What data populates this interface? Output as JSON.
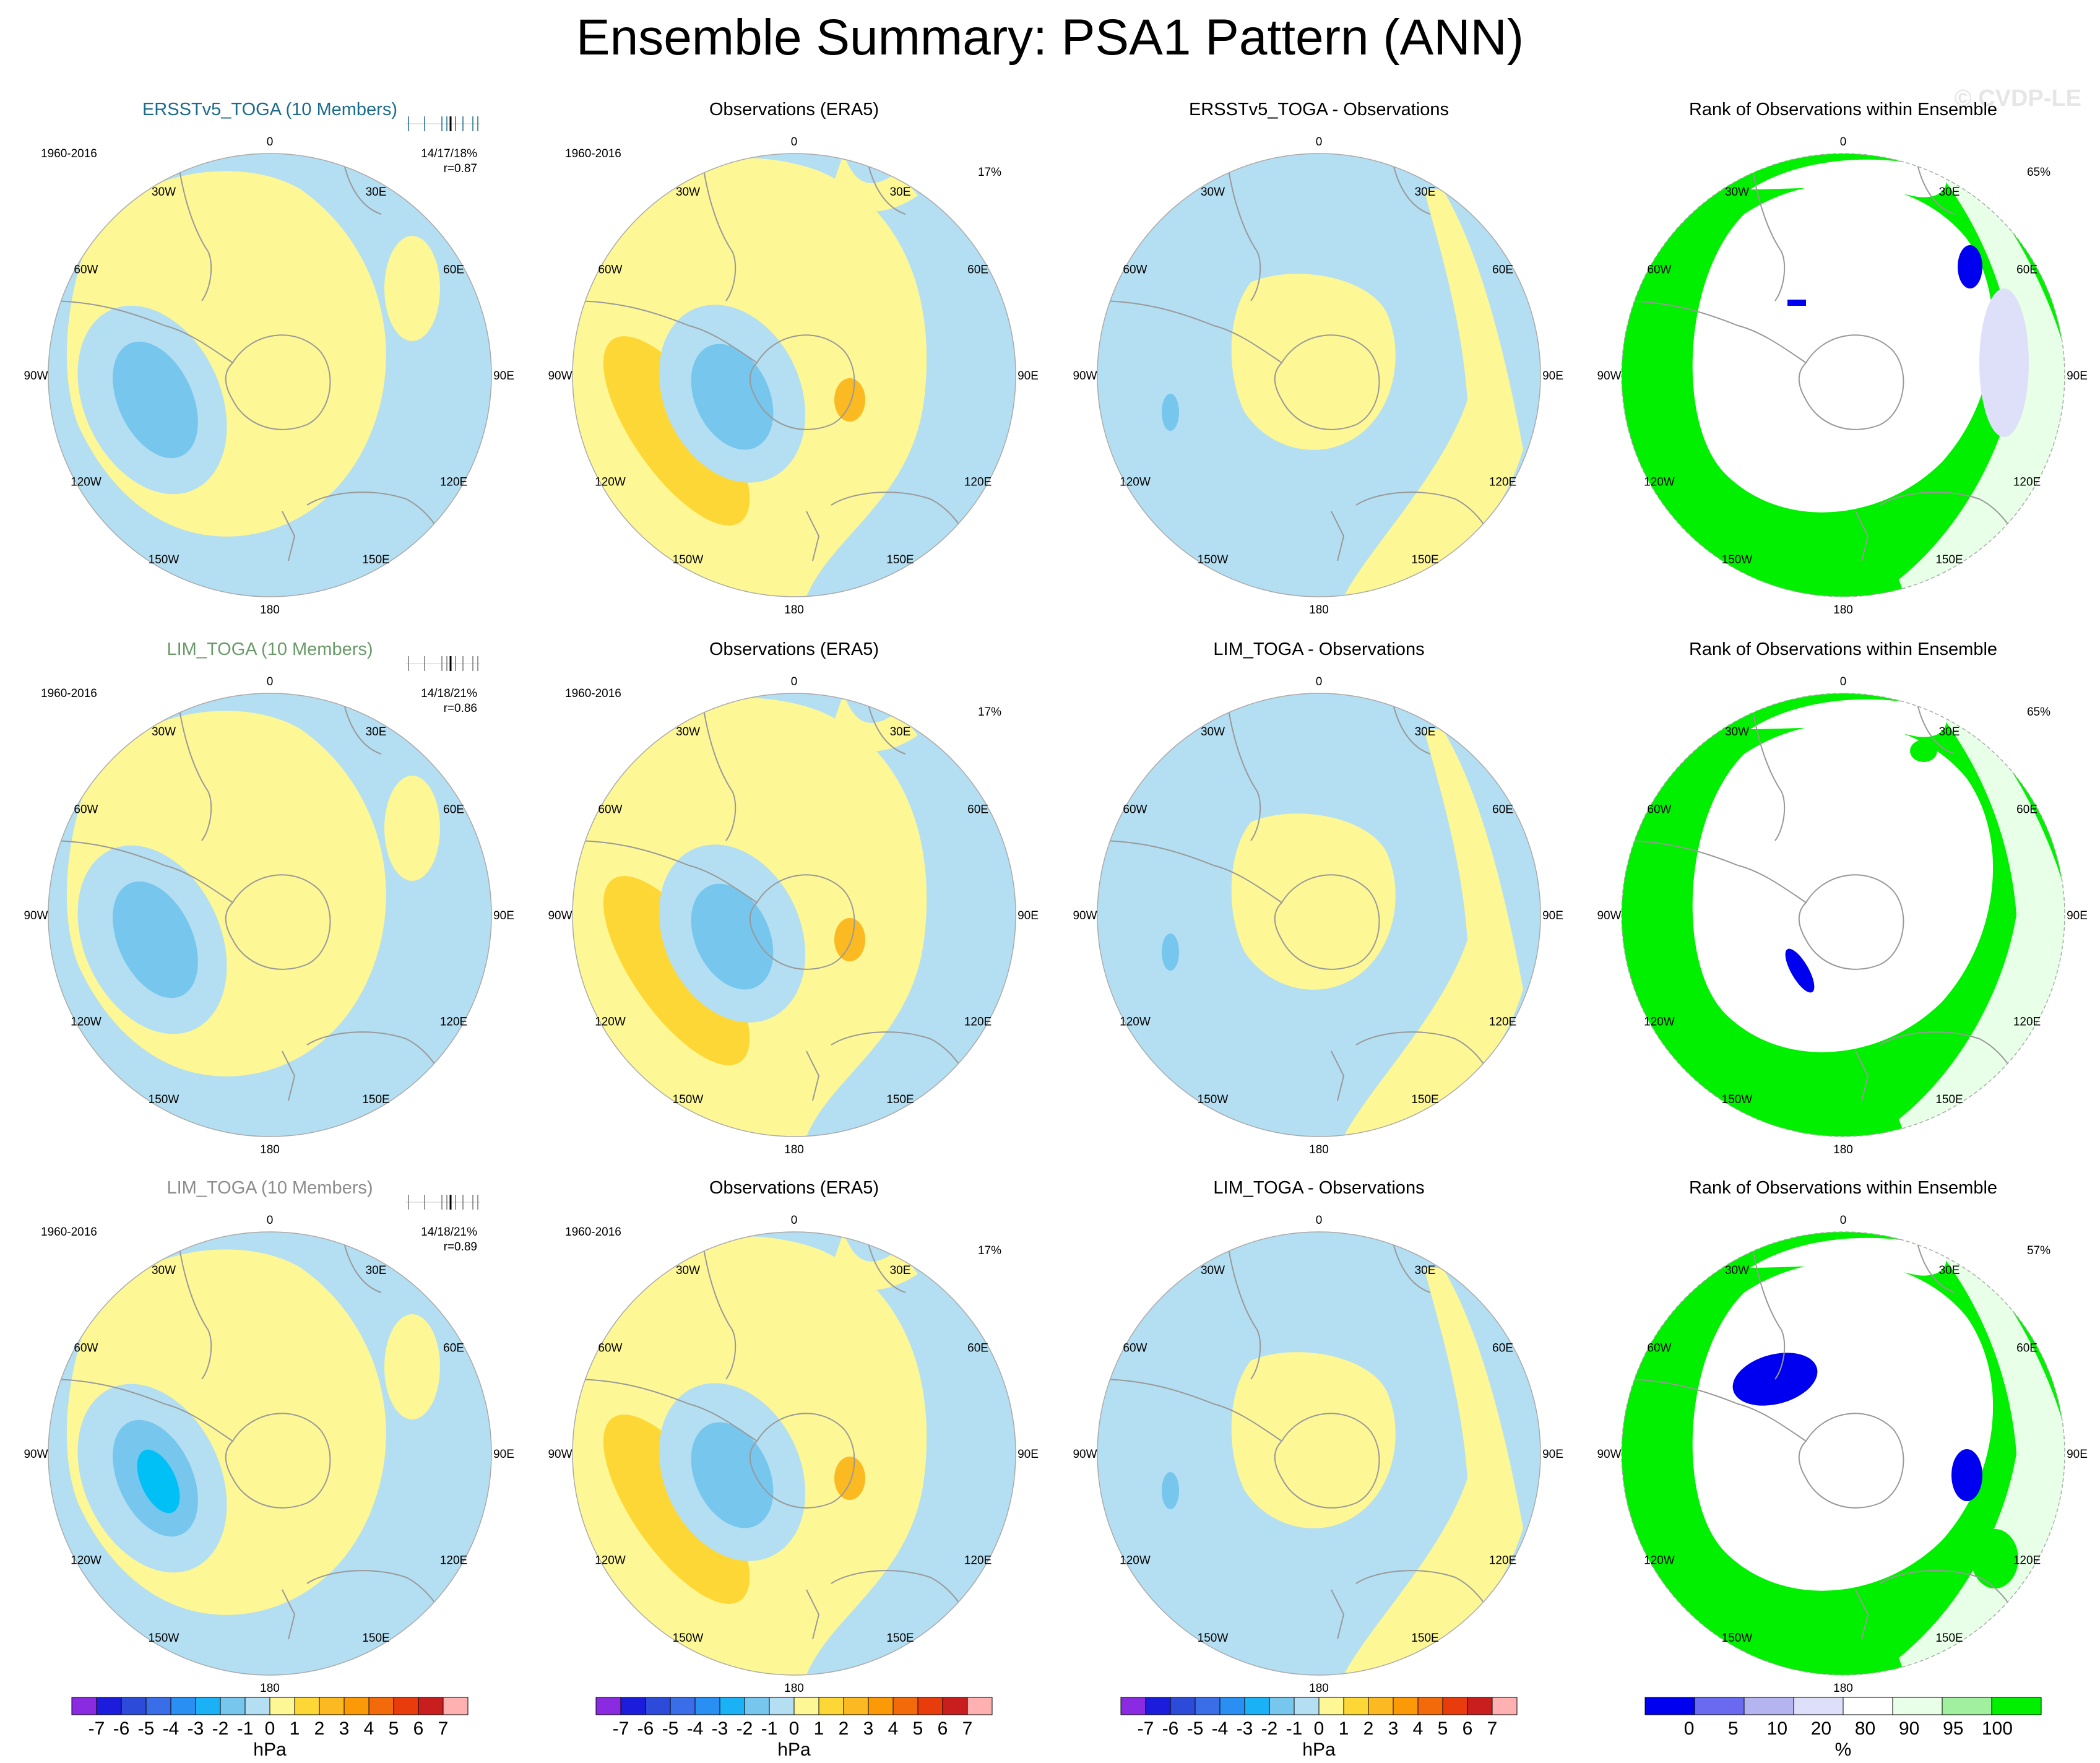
{
  "title": "Ensemble Summary: PSA1 Pattern (ANN)",
  "watermark": "© CVDP-LE",
  "colors": {
    "neg1": "#b4def2",
    "neg2": "#77c6ee",
    "neg3": "#01c0f5",
    "pos1": "#fdf796",
    "pos2": "#fdd735",
    "pos3": "#fbb922",
    "rank_green": "#00f000",
    "rank_lightgreen": "#e8ffe8",
    "rank_blue": "#0000f0",
    "rank_lightblue": "#dde0f8",
    "land": "#999999"
  },
  "lon_labels": [
    "0",
    "30E",
    "60E",
    "90E",
    "120E",
    "150E",
    "180",
    "150W",
    "120W",
    "90W",
    "60W",
    "30W"
  ],
  "rows": [
    {
      "ensemble_title": "ERSSTv5_TOGA (10 Members)",
      "ensemble_title_color": "#1a6b8c",
      "period": "1960-2016",
      "stats": "14/17/18%",
      "corr": "r=0.87",
      "obs_title": "Observations (ERA5)",
      "obs_pct": "17%",
      "diff_title": "ERSSTv5_TOGA - Observations",
      "rank_title": "Rank of Observations within Ensemble",
      "rank_pct": "65%"
    },
    {
      "ensemble_title": "LIM_TOGA (10 Members)",
      "ensemble_title_color": "#6a9a6a",
      "period": "1960-2016",
      "stats": "14/18/21%",
      "corr": "r=0.86",
      "obs_title": "Observations (ERA5)",
      "obs_pct": "17%",
      "diff_title": "LIM_TOGA - Observations",
      "rank_title": "Rank of Observations within Ensemble",
      "rank_pct": "65%"
    },
    {
      "ensemble_title": "LIM_TOGA (10 Members)",
      "ensemble_title_color": "#8c8c8c",
      "period": "1960-2016",
      "stats": "14/18/21%",
      "corr": "r=0.89",
      "obs_title": "Observations (ERA5)",
      "obs_pct": "17%",
      "diff_title": "LIM_TOGA - Observations",
      "rank_title": "Rank of Observations within Ensemble",
      "rank_pct": "57%"
    }
  ],
  "colorbar_hpa": {
    "unit": "hPa",
    "labels": [
      "-7",
      "-6",
      "-5",
      "-4",
      "-3",
      "-2",
      "-1",
      "0",
      "1",
      "2",
      "3",
      "4",
      "5",
      "6",
      "7"
    ],
    "colors": [
      "#8a2be2",
      "#1c1cdc",
      "#2b4bd8",
      "#3a6ee8",
      "#2a8ff2",
      "#1ab2f5",
      "#77c6ee",
      "#b4def2",
      "#fdf796",
      "#fdd735",
      "#fbb922",
      "#fb9a06",
      "#f26a0a",
      "#e83c0c",
      "#c81e1e",
      "#ffb0b0"
    ]
  },
  "colorbar_rank": {
    "unit": "%",
    "labels": [
      "0",
      "5",
      "10",
      "20",
      "80",
      "90",
      "95",
      "100"
    ],
    "colors": [
      "#0000f0",
      "#6a6af0",
      "#b4b4f0",
      "#dde0f8",
      "#ffffff",
      "#e8ffe8",
      "#a0f0a0",
      "#00f000"
    ]
  }
}
